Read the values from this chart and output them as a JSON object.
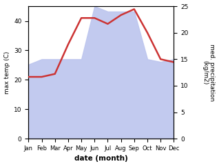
{
  "months": [
    "Jan",
    "Feb",
    "Mar",
    "Apr",
    "May",
    "Jun",
    "Jul",
    "Aug",
    "Sep",
    "Oct",
    "Nov",
    "Dec"
  ],
  "temp": [
    21,
    21,
    22,
    32,
    41,
    41,
    39,
    42,
    44,
    36,
    27,
    26
  ],
  "precip": [
    14,
    15,
    15,
    15,
    15,
    25,
    24,
    24,
    24,
    15,
    14.5,
    15
  ],
  "temp_color": "#cc3333",
  "precip_fill_color": "#bcc5ee",
  "left_ylim": [
    0,
    45
  ],
  "right_ylim": [
    0,
    25
  ],
  "left_yticks": [
    0,
    10,
    20,
    30,
    40
  ],
  "right_yticks": [
    0,
    5,
    10,
    15,
    20,
    25
  ],
  "xlabel": "date (month)",
  "ylabel_left": "max temp (C)",
  "ylabel_right": "med. precipitation\n(kg/m2)",
  "background_color": "#ffffff",
  "figsize": [
    3.18,
    2.42
  ],
  "dpi": 100
}
